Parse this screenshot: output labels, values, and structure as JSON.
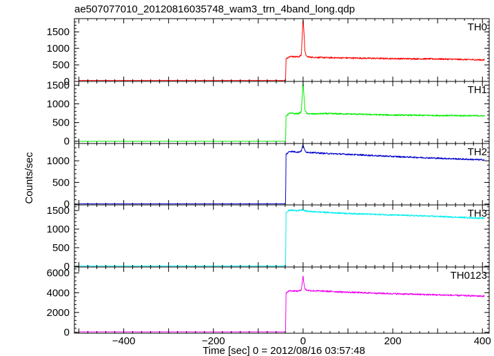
{
  "chart_data": {
    "type": "line",
    "title": "ae507077010_20120816035748_wam3_trn_4band_long.qdp",
    "xlabel": "Time [sec] 0 = 2012/08/16 03:57:48",
    "ylabel": "Counts/sec",
    "xlim": [
      -510,
      415
    ],
    "x_ticks": [
      -400,
      -200,
      0,
      200,
      400
    ],
    "grid": false,
    "panels": [
      {
        "name": "TH0",
        "color": "#ff0000",
        "ylim": [
          0,
          1900
        ],
        "y_ticks": [
          0,
          500,
          1000,
          1500
        ],
        "x": [
          -500,
          -39,
          -38,
          -30,
          -20,
          -10,
          -4,
          0,
          2,
          4,
          8,
          20,
          50,
          100,
          200,
          300,
          405
        ],
        "values": [
          30,
          30,
          680,
          760,
          750,
          745,
          790,
          1900,
          1500,
          900,
          750,
          730,
          720,
          710,
          690,
          680,
          650
        ]
      },
      {
        "name": "TH1",
        "color": "#00ee00",
        "ylim": [
          -60,
          1600
        ],
        "y_ticks": [
          0,
          500,
          1000,
          1500
        ],
        "x": [
          -500,
          -39,
          -38,
          -30,
          -20,
          -10,
          -4,
          0,
          2,
          4,
          8,
          20,
          50,
          100,
          200,
          300,
          405
        ],
        "values": [
          0,
          0,
          680,
          750,
          740,
          740,
          790,
          1600,
          1200,
          850,
          740,
          730,
          740,
          730,
          700,
          690,
          680
        ]
      },
      {
        "name": "TH2",
        "color": "#0000cc",
        "ylim": [
          -20,
          1400
        ],
        "y_ticks": [
          0,
          500,
          1000
        ],
        "x": [
          -500,
          -39,
          -38,
          -30,
          -20,
          -10,
          -4,
          0,
          2,
          4,
          8,
          20,
          50,
          100,
          200,
          300,
          405
        ],
        "values": [
          5,
          5,
          1150,
          1220,
          1210,
          1200,
          1230,
          1380,
          1300,
          1230,
          1200,
          1190,
          1170,
          1150,
          1100,
          1060,
          1020
        ]
      },
      {
        "name": "TH3",
        "color": "#00eeee",
        "ylim": [
          -20,
          1650
        ],
        "y_ticks": [
          0,
          500,
          1000,
          1500
        ],
        "x": [
          -500,
          -39,
          -38,
          -30,
          -20,
          -10,
          -4,
          0,
          2,
          4,
          8,
          20,
          50,
          100,
          200,
          300,
          405
        ],
        "values": [
          5,
          5,
          1450,
          1510,
          1500,
          1500,
          1505,
          1520,
          1500,
          1490,
          1480,
          1470,
          1450,
          1420,
          1380,
          1340,
          1290
        ]
      },
      {
        "name": "TH0123",
        "color": "#ee00ee",
        "ylim": [
          -100,
          6600
        ],
        "y_ticks": [
          0,
          2000,
          4000,
          6000
        ],
        "x": [
          -500,
          -39,
          -38,
          -30,
          -20,
          -10,
          -4,
          0,
          2,
          4,
          8,
          20,
          50,
          100,
          200,
          300,
          405
        ],
        "values": [
          40,
          40,
          4000,
          4200,
          4180,
          4160,
          4300,
          5700,
          4900,
          4400,
          4250,
          4200,
          4150,
          4050,
          3900,
          3780,
          3650
        ]
      }
    ]
  }
}
